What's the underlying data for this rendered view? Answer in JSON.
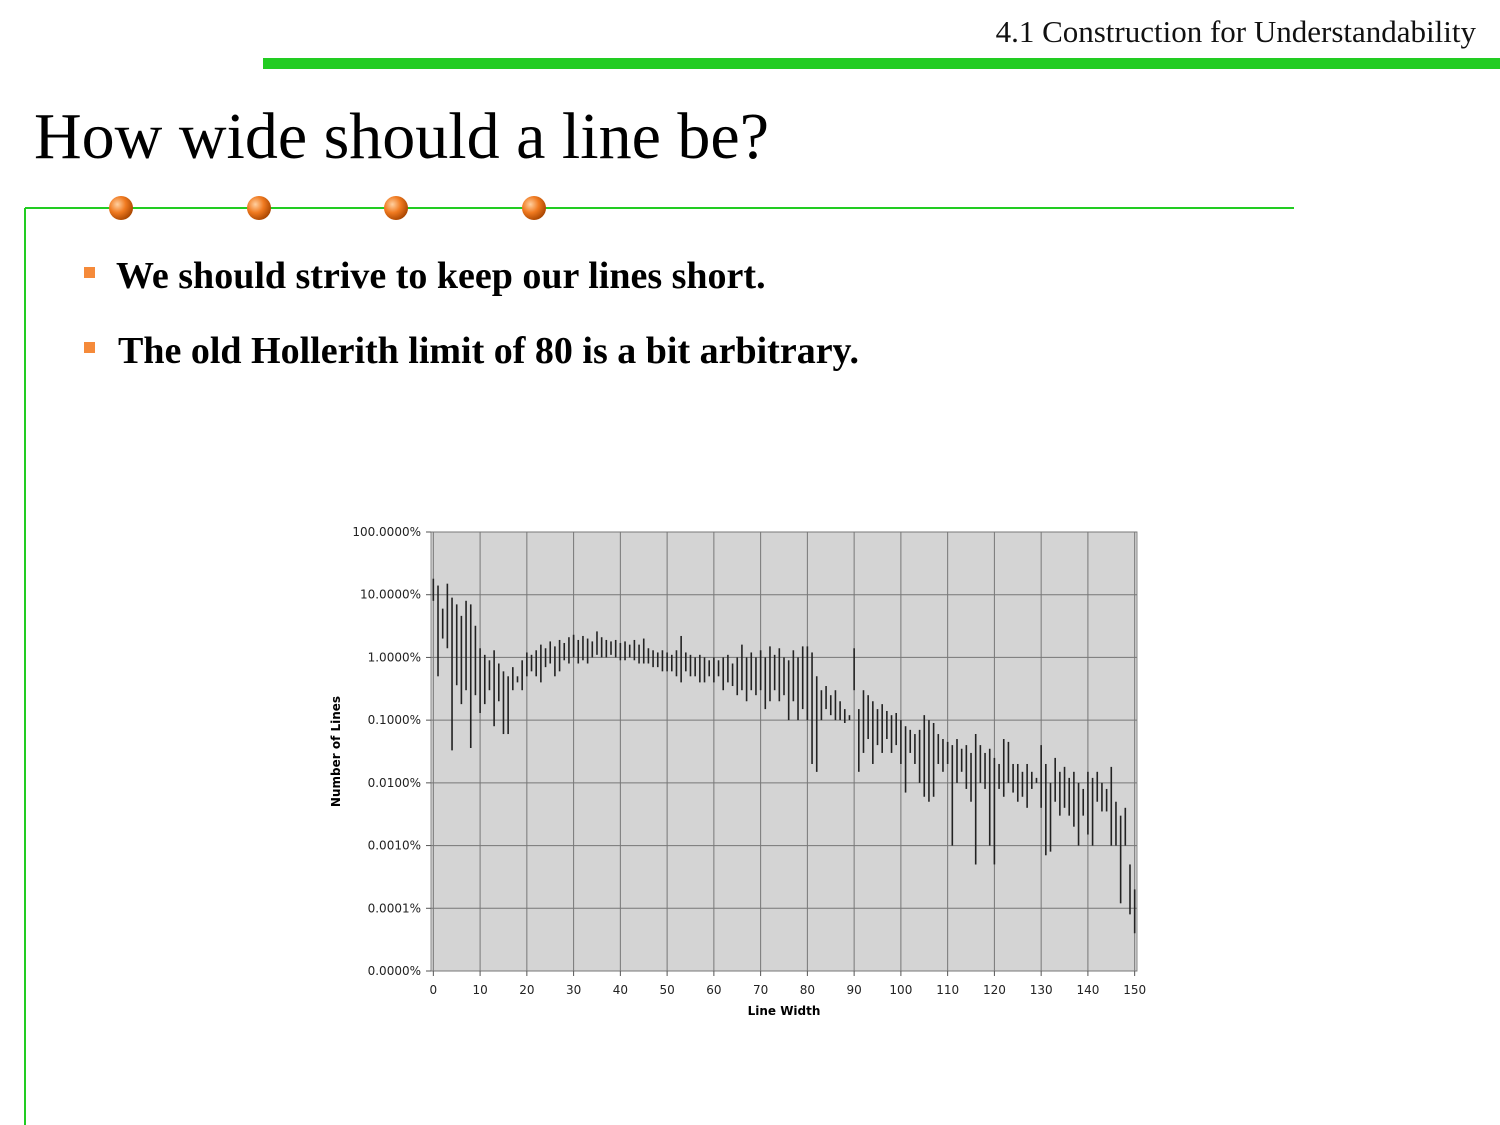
{
  "header": {
    "section": "4.1 Construction for Understandability"
  },
  "title": "How wide should a line be?",
  "bullets": [
    "We should strive to keep our lines short.",
    "The old Hollerith limit of 80 is a bit arbitrary."
  ],
  "chart_data": {
    "type": "hilo",
    "xlabel": "Line Width",
    "ylabel": "Number of Lines",
    "ylog": true,
    "grid": true,
    "color": "#222222",
    "plot_color": "#d4d4d4",
    "xlim": [
      -0.5,
      150.5
    ],
    "xticks": [
      0,
      10,
      20,
      30,
      40,
      50,
      60,
      70,
      80,
      90,
      100,
      110,
      120,
      130,
      140,
      150
    ],
    "ylim": [
      1e-05,
      100
    ],
    "yticks": [
      {
        "value": 1e-05,
        "label": "0.0000%"
      },
      {
        "value": 0.0001,
        "label": "0.0001%"
      },
      {
        "value": 0.001,
        "label": "0.0010%"
      },
      {
        "value": 0.01,
        "label": "0.0100%"
      },
      {
        "value": 0.1,
        "label": "0.1000%"
      },
      {
        "value": 1,
        "label": "1.0000%"
      },
      {
        "value": 10,
        "label": "10.0000%"
      },
      {
        "value": 100,
        "label": "100.0000%"
      }
    ],
    "x": [
      0,
      1,
      2,
      3,
      4,
      5,
      6,
      7,
      8,
      9,
      10,
      11,
      12,
      13,
      14,
      15,
      16,
      17,
      18,
      19,
      20,
      21,
      22,
      23,
      24,
      25,
      26,
      27,
      28,
      29,
      30,
      31,
      32,
      33,
      34,
      35,
      36,
      37,
      38,
      39,
      40,
      41,
      42,
      43,
      44,
      45,
      46,
      47,
      48,
      49,
      50,
      51,
      52,
      53,
      54,
      55,
      56,
      57,
      58,
      59,
      60,
      61,
      62,
      63,
      64,
      65,
      66,
      67,
      68,
      69,
      70,
      71,
      72,
      73,
      74,
      75,
      76,
      77,
      78,
      79,
      80,
      81,
      82,
      83,
      84,
      85,
      86,
      87,
      88,
      89,
      90,
      91,
      92,
      93,
      94,
      95,
      96,
      97,
      98,
      99,
      100,
      101,
      102,
      103,
      104,
      105,
      106,
      107,
      108,
      109,
      110,
      111,
      112,
      113,
      114,
      115,
      116,
      117,
      118,
      119,
      120,
      121,
      122,
      123,
      124,
      125,
      126,
      127,
      128,
      129,
      130,
      131,
      132,
      133,
      134,
      135,
      136,
      137,
      138,
      139,
      140,
      141,
      142,
      143,
      144,
      145,
      146,
      147,
      148,
      149,
      150
    ],
    "high": [
      18,
      14,
      6,
      15,
      9,
      7,
      4.6,
      8,
      7,
      3.2,
      1.4,
      1.1,
      0.9,
      1.3,
      0.8,
      0.6,
      0.5,
      0.7,
      0.5,
      0.9,
      1.2,
      1.1,
      1.3,
      1.6,
      1.4,
      1.8,
      1.5,
      1.9,
      1.7,
      2.1,
      2.3,
      1.9,
      2.2,
      2.0,
      1.8,
      2.6,
      2.1,
      1.9,
      1.8,
      1.9,
      1.7,
      1.8,
      1.6,
      1.9,
      1.6,
      2.0,
      1.4,
      1.3,
      1.2,
      1.3,
      1.2,
      1.1,
      1.3,
      2.2,
      1.2,
      1.1,
      1.0,
      1.1,
      1.0,
      0.9,
      1.0,
      0.9,
      1.0,
      1.1,
      0.8,
      1.0,
      1.6,
      1.0,
      1.2,
      1.0,
      1.3,
      1.0,
      1.5,
      1.1,
      1.4,
      1.0,
      0.9,
      1.3,
      1.0,
      1.5,
      1.5,
      1.2,
      0.5,
      0.3,
      0.35,
      0.25,
      0.3,
      0.2,
      0.15,
      0.12,
      1.4,
      0.15,
      0.3,
      0.25,
      0.2,
      0.15,
      0.18,
      0.14,
      0.12,
      0.13,
      0.1,
      0.08,
      0.07,
      0.06,
      0.07,
      0.12,
      0.1,
      0.09,
      0.06,
      0.05,
      0.045,
      0.04,
      0.05,
      0.035,
      0.04,
      0.03,
      0.06,
      0.04,
      0.03,
      0.035,
      0.025,
      0.02,
      0.05,
      0.045,
      0.02,
      0.02,
      0.015,
      0.02,
      0.015,
      0.012,
      0.04,
      0.02,
      0.01,
      0.025,
      0.015,
      0.018,
      0.012,
      0.015,
      0.01,
      0.008,
      0.015,
      0.012,
      0.015,
      0.01,
      0.008,
      0.018,
      0.005,
      0.003,
      0.004,
      0.0005,
      0.0002
    ],
    "low": [
      8,
      0.5,
      2,
      1.4,
      0.033,
      0.36,
      0.18,
      0.3,
      0.036,
      0.25,
      0.13,
      0.18,
      0.3,
      0.08,
      0.2,
      0.06,
      0.06,
      0.3,
      0.4,
      0.3,
      0.5,
      0.6,
      0.5,
      0.4,
      0.7,
      0.8,
      0.5,
      0.6,
      0.9,
      0.8,
      1.0,
      0.8,
      0.9,
      0.8,
      1.0,
      1.1,
      1.0,
      1.0,
      1.1,
      1.0,
      0.9,
      0.9,
      1.0,
      0.9,
      0.8,
      0.8,
      0.8,
      0.7,
      0.7,
      0.6,
      0.6,
      0.6,
      0.5,
      0.4,
      0.6,
      0.5,
      0.5,
      0.4,
      0.4,
      0.5,
      0.4,
      0.5,
      0.3,
      0.4,
      0.35,
      0.25,
      0.3,
      0.2,
      0.3,
      0.25,
      0.3,
      0.15,
      0.2,
      0.3,
      0.2,
      0.25,
      0.1,
      0.2,
      0.1,
      0.15,
      0.1,
      0.02,
      0.015,
      0.1,
      0.15,
      0.12,
      0.1,
      0.1,
      0.09,
      0.1,
      0.3,
      0.015,
      0.03,
      0.05,
      0.02,
      0.04,
      0.03,
      0.05,
      0.03,
      0.04,
      0.02,
      0.007,
      0.03,
      0.02,
      0.01,
      0.006,
      0.005,
      0.006,
      0.02,
      0.015,
      0.02,
      0.001,
      0.01,
      0.015,
      0.008,
      0.005,
      0.0005,
      0.01,
      0.008,
      0.001,
      0.0005,
      0.008,
      0.006,
      0.01,
      0.007,
      0.005,
      0.006,
      0.004,
      0.008,
      0.01,
      0.004,
      0.0007,
      0.0008,
      0.005,
      0.003,
      0.004,
      0.003,
      0.002,
      0.001,
      0.003,
      0.0015,
      0.001,
      0.005,
      0.0035,
      0.0035,
      0.001,
      0.001,
      0.00012,
      0.001,
      8e-05,
      4e-05
    ]
  }
}
